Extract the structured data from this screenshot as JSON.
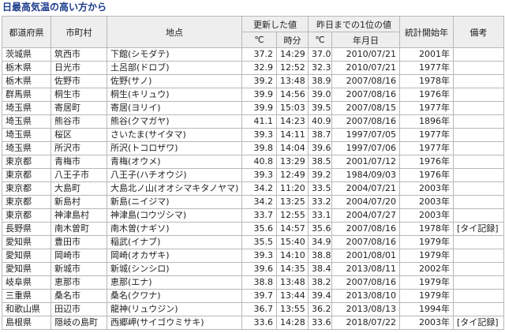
{
  "header": {
    "title": "日最高気温の高い方から"
  },
  "table": {
    "columns": [
      "都道府県",
      "市町村",
      "地点",
      "更新した値",
      "昨日までの1位の値",
      "統計開始年",
      "備考"
    ],
    "subcolumns": [
      "℃",
      "時分",
      "℃",
      "年月日"
    ],
    "rows": [
      [
        "茨城県",
        "筑西市",
        "下館(シモダテ)",
        "37.2",
        "14:29",
        "37.0",
        "2010/07/21",
        "2001年"
      ],
      [
        "栃木県",
        "日光市",
        "土呂部(ドロブ)",
        "32.9",
        "12:52",
        "32.3",
        "2010/07/21",
        "1977年"
      ],
      [
        "栃木県",
        "佐野市",
        "佐野(サノ)",
        "39.2",
        "13:48",
        "38.9",
        "2007/08/16",
        "1978年"
      ],
      [
        "群馬県",
        "桐生市",
        "桐生(キリュウ)",
        "39.9",
        "14:56",
        "39.0",
        "2007/08/16",
        "1976年"
      ],
      [
        "埼玉県",
        "寄居町",
        "寄居(ヨリイ)",
        "39.9",
        "15:03",
        "39.5",
        "2007/08/15",
        "1977年"
      ],
      [
        "埼玉県",
        "熊谷市",
        "熊谷(クマガヤ)",
        "41.1",
        "14:23",
        "40.9",
        "2007/08/16",
        "1896年"
      ],
      [
        "埼玉県",
        "桜区",
        "さいたま(サイタマ)",
        "39.3",
        "14:11",
        "38.7",
        "1997/07/05",
        "1977年"
      ],
      [
        "埼玉県",
        "所沢市",
        "所沢(トコロザワ)",
        "39.8",
        "14:04",
        "39.6",
        "1997/07/06",
        "1977年"
      ],
      [
        "東京都",
        "青梅市",
        "青梅(オウメ)",
        "40.8",
        "13:29",
        "38.5",
        "2001/07/12",
        "1976年"
      ],
      [
        "東京都",
        "八王子市",
        "八王子(ハチオウジ)",
        "39.3",
        "12:49",
        "39.2",
        "1984/09/03",
        "1976年"
      ],
      [
        "東京都",
        "大島町",
        "大島北ノ山(オオシマキタノヤマ)",
        "34.2",
        "11:20",
        "33.5",
        "2004/07/21",
        "2003年"
      ],
      [
        "東京都",
        "新島村",
        "新島(ニイジマ)",
        "34.2",
        "13:25",
        "33.2",
        "2004/07/20",
        "2003年"
      ],
      [
        "東京都",
        "神津島村",
        "神津島(コウヅシマ)",
        "33.7",
        "12:55",
        "33.1",
        "2004/07/27",
        "2003年"
      ],
      [
        "長野県",
        "南木曽町",
        "南木曽(ナギソ)",
        "35.6",
        "14:57",
        "35.6",
        "2007/08/16",
        "1978年",
        "[タイ記録]"
      ],
      [
        "愛知県",
        "豊田市",
        "稲武(イナブ)",
        "35.5",
        "15:40",
        "34.9",
        "2007/08/16",
        "1979年"
      ],
      [
        "愛知県",
        "岡崎市",
        "岡崎(オカザキ)",
        "39.3",
        "14:10",
        "38.8",
        "2001/08/01",
        "1979年"
      ],
      [
        "愛知県",
        "新城市",
        "新城(シンシロ)",
        "39.6",
        "14:35",
        "38.4",
        "2013/08/11",
        "2002年"
      ],
      [
        "岐阜県",
        "恵那市",
        "恵那(エナ)",
        "38.8",
        "13:48",
        "38.2",
        "2007/08/16",
        "1979年"
      ],
      [
        "三重県",
        "桑名市",
        "桑名(クワナ)",
        "39.7",
        "13:44",
        "39.4",
        "2013/08/10",
        "1979年"
      ],
      [
        "和歌山県",
        "田辺市",
        "龍神(リュウジン)",
        "36.7",
        "13:55",
        "36.2",
        "2013/08/13",
        "1994年"
      ],
      [
        "島根県",
        "隠岐の島町",
        "西郷岬(サイゴウミサキ)",
        "33.6",
        "14:28",
        "33.6",
        "2018/07/22",
        "2003年",
        "[タイ記録]"
      ]
    ]
  }
}
